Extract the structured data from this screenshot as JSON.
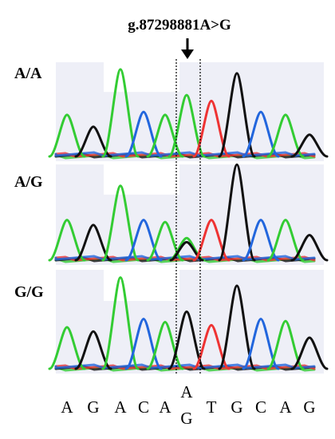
{
  "figure": {
    "title": "g.87298881A>G",
    "variant_position_index": 5,
    "colors": {
      "A": "#33cc33",
      "G": "#111111",
      "T": "#ee3333",
      "C": "#2266dd"
    },
    "panels": [
      {
        "label": "A/A"
      },
      {
        "label": "A/G"
      },
      {
        "label": "G/G"
      }
    ],
    "sequence": [
      {
        "base": "A"
      },
      {
        "base": "G"
      },
      {
        "base": "A"
      },
      {
        "base": "C"
      },
      {
        "base": "A"
      },
      {
        "base": "A",
        "alt": "G"
      },
      {
        "base": "T"
      },
      {
        "base": "G"
      },
      {
        "base": "C"
      },
      {
        "base": "A"
      },
      {
        "base": "G"
      }
    ]
  }
}
